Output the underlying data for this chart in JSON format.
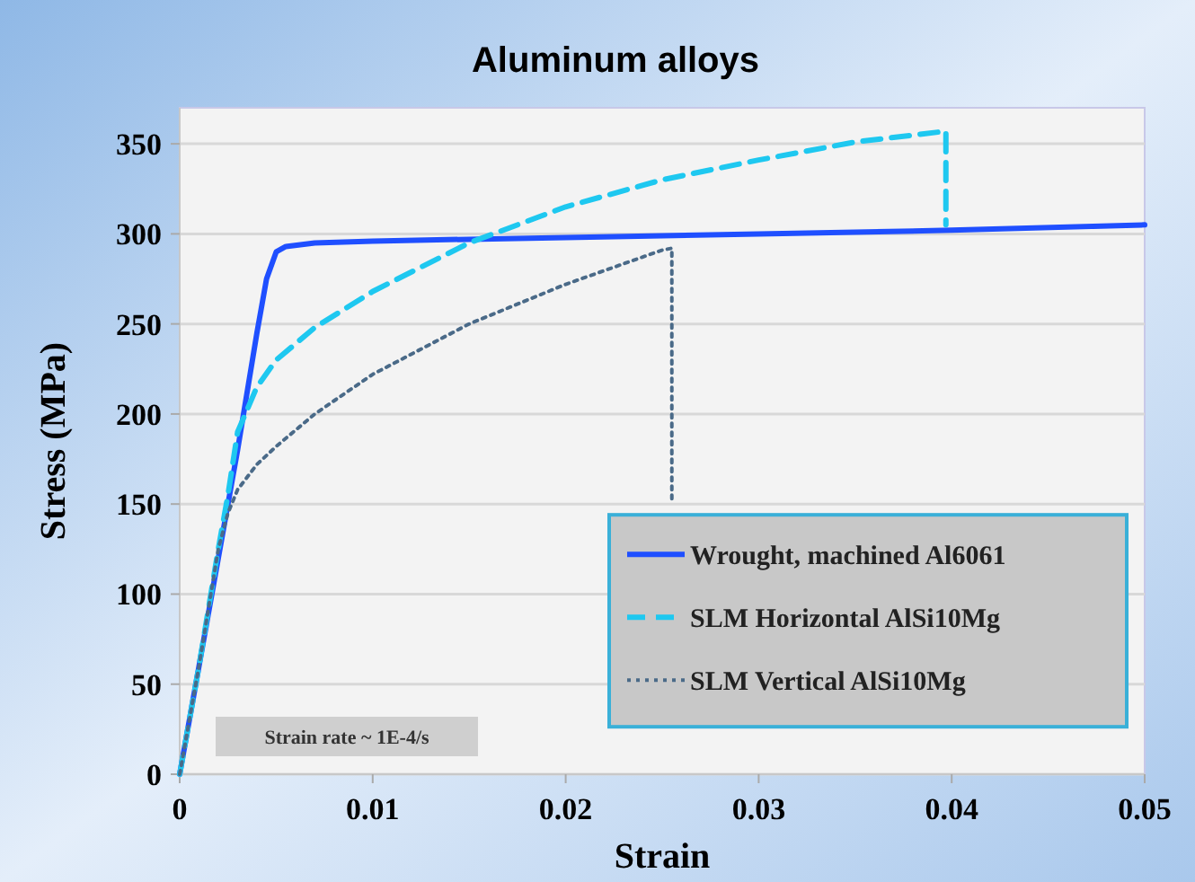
{
  "chart_data": {
    "type": "line",
    "title": "Aluminum alloys",
    "xlabel": "Strain",
    "ylabel": "Stress  (MPa)",
    "xlim": [
      0,
      0.05
    ],
    "xticks": [
      0,
      0.01,
      0.02,
      0.03,
      0.04,
      0.05
    ],
    "ylim": [
      0,
      370
    ],
    "yticks": [
      0,
      50,
      100,
      150,
      200,
      250,
      300,
      350
    ],
    "grid": "y",
    "legend": "bottom right",
    "annotations": [
      "Strain rate ~ 1E-4/s"
    ],
    "series": [
      {
        "name": "Wrought, machined Al6061",
        "color": "#1f4fff",
        "line_style": "solid",
        "x": [
          0,
          0.001,
          0.002,
          0.003,
          0.004,
          0.0045,
          0.005,
          0.0055,
          0.007,
          0.01,
          0.02,
          0.03,
          0.04,
          0.05
        ],
        "values": [
          0,
          60,
          120,
          180,
          245,
          275,
          290,
          293,
          295,
          296,
          298,
          300,
          302,
          305
        ]
      },
      {
        "name": "SLM Horizontal AlSi10Mg",
        "color": "#1ec8f0",
        "line_style": "dashed",
        "x": [
          0,
          0.001,
          0.002,
          0.0025,
          0.003,
          0.004,
          0.005,
          0.007,
          0.01,
          0.015,
          0.02,
          0.025,
          0.03,
          0.035,
          0.0397,
          0.0397
        ],
        "values": [
          0,
          60,
          125,
          155,
          190,
          215,
          230,
          248,
          268,
          295,
          315,
          330,
          341,
          351,
          357,
          305
        ]
      },
      {
        "name": "SLM Vertical AlSi10Mg",
        "color": "#4a6a88",
        "line_style": "dotted",
        "x": [
          0,
          0.001,
          0.002,
          0.0025,
          0.003,
          0.004,
          0.005,
          0.007,
          0.01,
          0.015,
          0.02,
          0.025,
          0.0255,
          0.0255
        ],
        "values": [
          0,
          60,
          125,
          145,
          158,
          172,
          182,
          200,
          222,
          250,
          272,
          291,
          292,
          150
        ]
      }
    ]
  }
}
